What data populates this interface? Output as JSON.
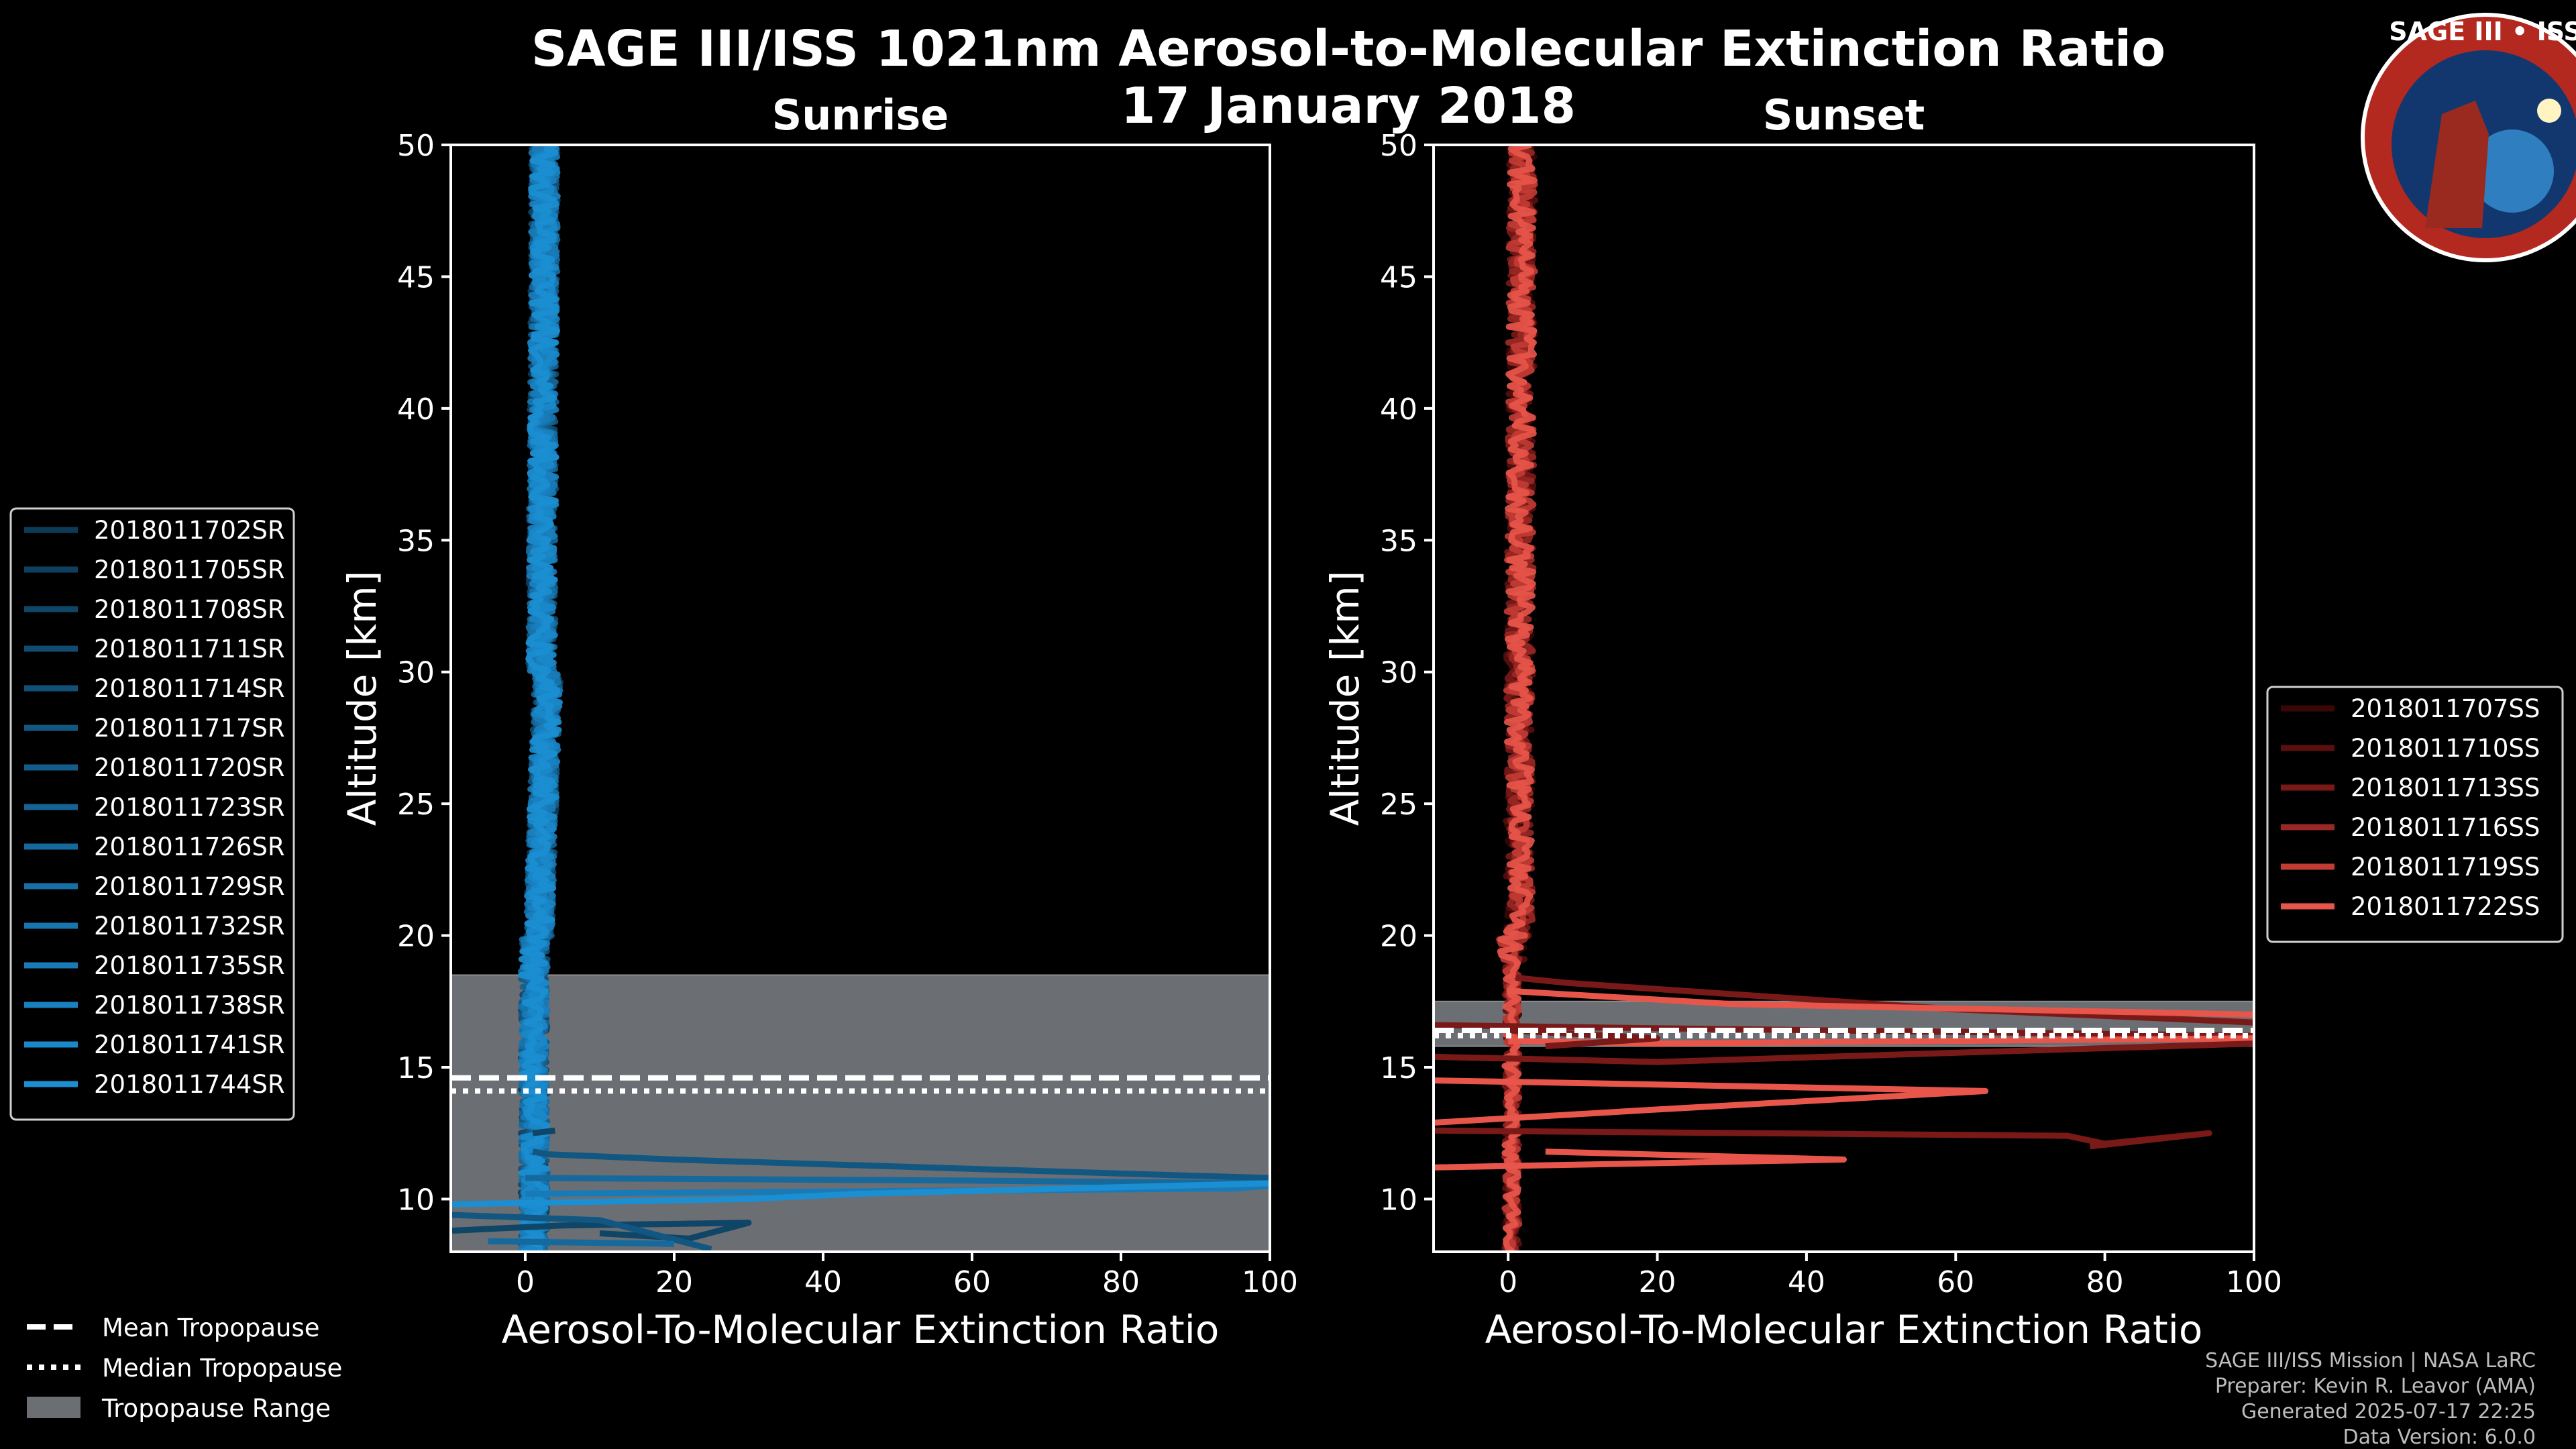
{
  "title": "SAGE III/ISS 1021nm Aerosol-to-Molecular Extinction Ratio",
  "date": "17 January 2018",
  "badge": {
    "name": "SAGE III • ISS"
  },
  "credits": [
    "SAGE III/ISS Mission | NASA LaRC",
    "Preparer: Kevin R. Leavor (AMA)",
    "Generated 2025-07-17 22:25",
    "Data Version: 6.0.0"
  ],
  "tropopause_legend": [
    "Mean Tropopause",
    "Median Tropopause",
    "Tropopause Range"
  ],
  "colors": {
    "sunrise": "#1b8fd2",
    "sunset": "#e8554a",
    "range": "#6b6e72",
    "background": "#000000"
  },
  "chart_data": [
    {
      "type": "line",
      "title": "Sunrise",
      "xlabel": "Aerosol-To-Molecular Extinction Ratio",
      "ylabel": "Altitude [km]",
      "xlim": [
        -10,
        100
      ],
      "ylim": [
        8,
        50
      ],
      "xticks": [
        0,
        20,
        40,
        60,
        80,
        100
      ],
      "yticks": [
        10,
        15,
        20,
        25,
        30,
        35,
        40,
        45,
        50
      ],
      "tropopause": {
        "mean": 14.6,
        "median": 14.1,
        "range": [
          8,
          18.5
        ]
      },
      "series": [
        {
          "name": "2018011702SR",
          "color": "#0d3a55"
        },
        {
          "name": "2018011705SR",
          "color": "#0e3f5e"
        },
        {
          "name": "2018011708SR",
          "color": "#0f4567"
        },
        {
          "name": "2018011711SR",
          "color": "#104b70"
        },
        {
          "name": "2018011714SR",
          "color": "#115179"
        },
        {
          "name": "2018011717SR",
          "color": "#125782"
        },
        {
          "name": "2018011720SR",
          "color": "#135d8b"
        },
        {
          "name": "2018011723SR",
          "color": "#146394"
        },
        {
          "name": "2018011726SR",
          "color": "#15699d"
        },
        {
          "name": "2018011729SR",
          "color": "#166fa6"
        },
        {
          "name": "2018011732SR",
          "color": "#1775af"
        },
        {
          "name": "2018011735SR",
          "color": "#187bb8"
        },
        {
          "name": "2018011738SR",
          "color": "#1981c1"
        },
        {
          "name": "2018011741SR",
          "color": "#1a88ca"
        },
        {
          "name": "2018011744SR",
          "color": "#1b8fd2"
        }
      ]
    },
    {
      "type": "line",
      "title": "Sunset",
      "xlabel": "Aerosol-To-Molecular Extinction Ratio",
      "ylabel": "Altitude [km]",
      "xlim": [
        -10,
        100
      ],
      "ylim": [
        8,
        50
      ],
      "xticks": [
        0,
        20,
        40,
        60,
        80,
        100
      ],
      "yticks": [
        10,
        15,
        20,
        25,
        30,
        35,
        40,
        45,
        50
      ],
      "tropopause": {
        "mean": 16.4,
        "median": 16.2,
        "range": [
          15.8,
          17.5
        ]
      },
      "series": [
        {
          "name": "2018011707SS",
          "color": "#3a0606"
        },
        {
          "name": "2018011710SS",
          "color": "#5a0e0e"
        },
        {
          "name": "2018011713SS",
          "color": "#7a1a18"
        },
        {
          "name": "2018011716SS",
          "color": "#9a2824"
        },
        {
          "name": "2018011719SS",
          "color": "#c23c34"
        },
        {
          "name": "2018011722SS",
          "color": "#e8554a"
        }
      ]
    }
  ]
}
